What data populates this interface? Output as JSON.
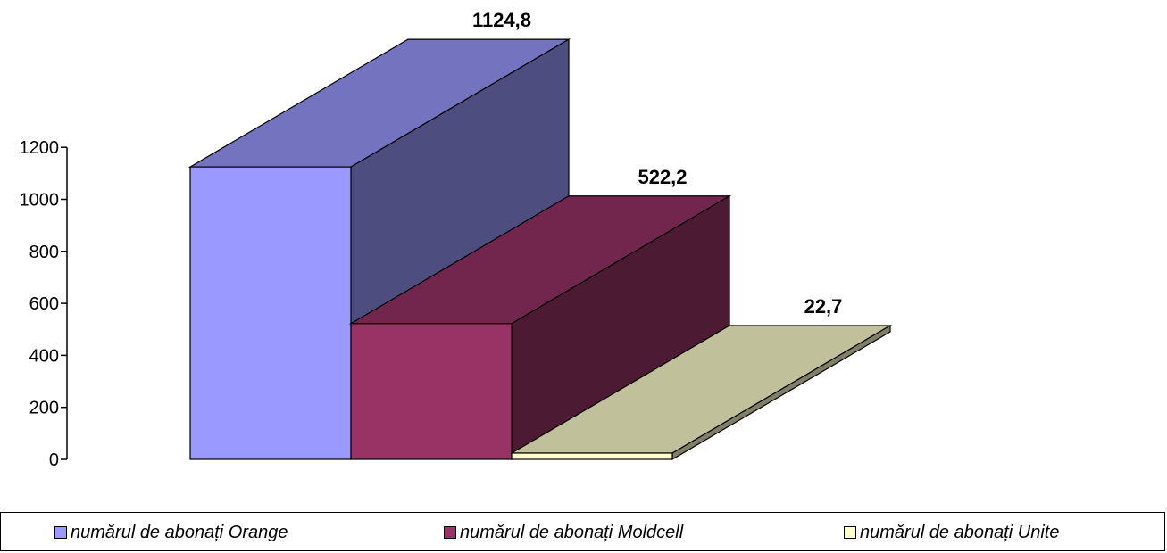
{
  "chart_data": {
    "type": "bar",
    "subtype": "3d-step",
    "categories": [
      ""
    ],
    "series": [
      {
        "name": "numărul de abonați Orange",
        "value": 1124.8,
        "label": "1124,8",
        "color": "#9999ff",
        "top_color": "#7373c0",
        "side_color": "#4d4d80"
      },
      {
        "name": "numărul de abonați Moldcell",
        "value": 522.2,
        "label": "522,2",
        "color": "#993366",
        "top_color": "#73264d",
        "side_color": "#4d1a33"
      },
      {
        "name": "numărul de abonați Unite",
        "value": 22.7,
        "label": "22,7",
        "color": "#ffffcc",
        "top_color": "#c0c09a",
        "side_color": "#808066"
      }
    ],
    "yticks": [
      "0",
      "200",
      "400",
      "600",
      "800",
      "1000",
      "1200"
    ],
    "ylim": [
      0,
      1200
    ],
    "grid": false,
    "legend_position": "bottom"
  }
}
